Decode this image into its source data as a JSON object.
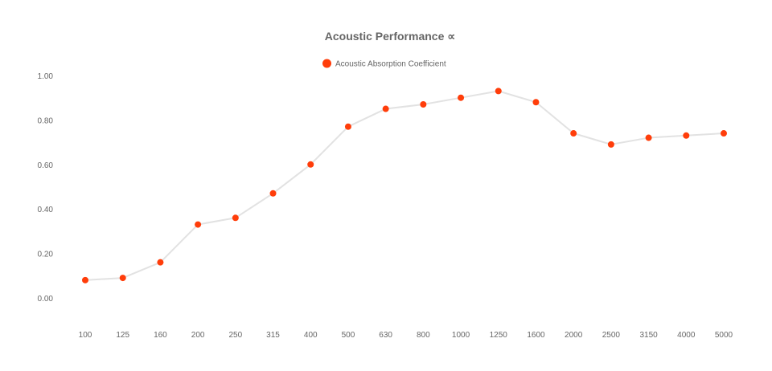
{
  "chart_data": {
    "type": "line",
    "title": "Acoustic Performance ∝",
    "xlabel": "",
    "ylabel": "",
    "categories": [
      "100",
      "125",
      "160",
      "200",
      "250",
      "315",
      "400",
      "500",
      "630",
      "800",
      "1000",
      "1250",
      "1600",
      "2000",
      "2500",
      "3150",
      "4000",
      "5000"
    ],
    "series": [
      {
        "name": "Acoustic Absorption Coefficient",
        "values": [
          0.08,
          0.09,
          0.16,
          0.33,
          0.36,
          0.47,
          0.6,
          0.77,
          0.85,
          0.87,
          0.9,
          0.93,
          0.88,
          0.74,
          0.69,
          0.72,
          0.73,
          0.74
        ]
      }
    ],
    "ylim": [
      0.0,
      1.0
    ],
    "yticks": [
      "0.00",
      "0.20",
      "0.40",
      "0.60",
      "0.80",
      "1.00"
    ],
    "grid": false,
    "legend_position": "top-center",
    "colors": {
      "point": "#ff3d0a",
      "line": "#e2e2e2",
      "text": "#666666"
    }
  }
}
